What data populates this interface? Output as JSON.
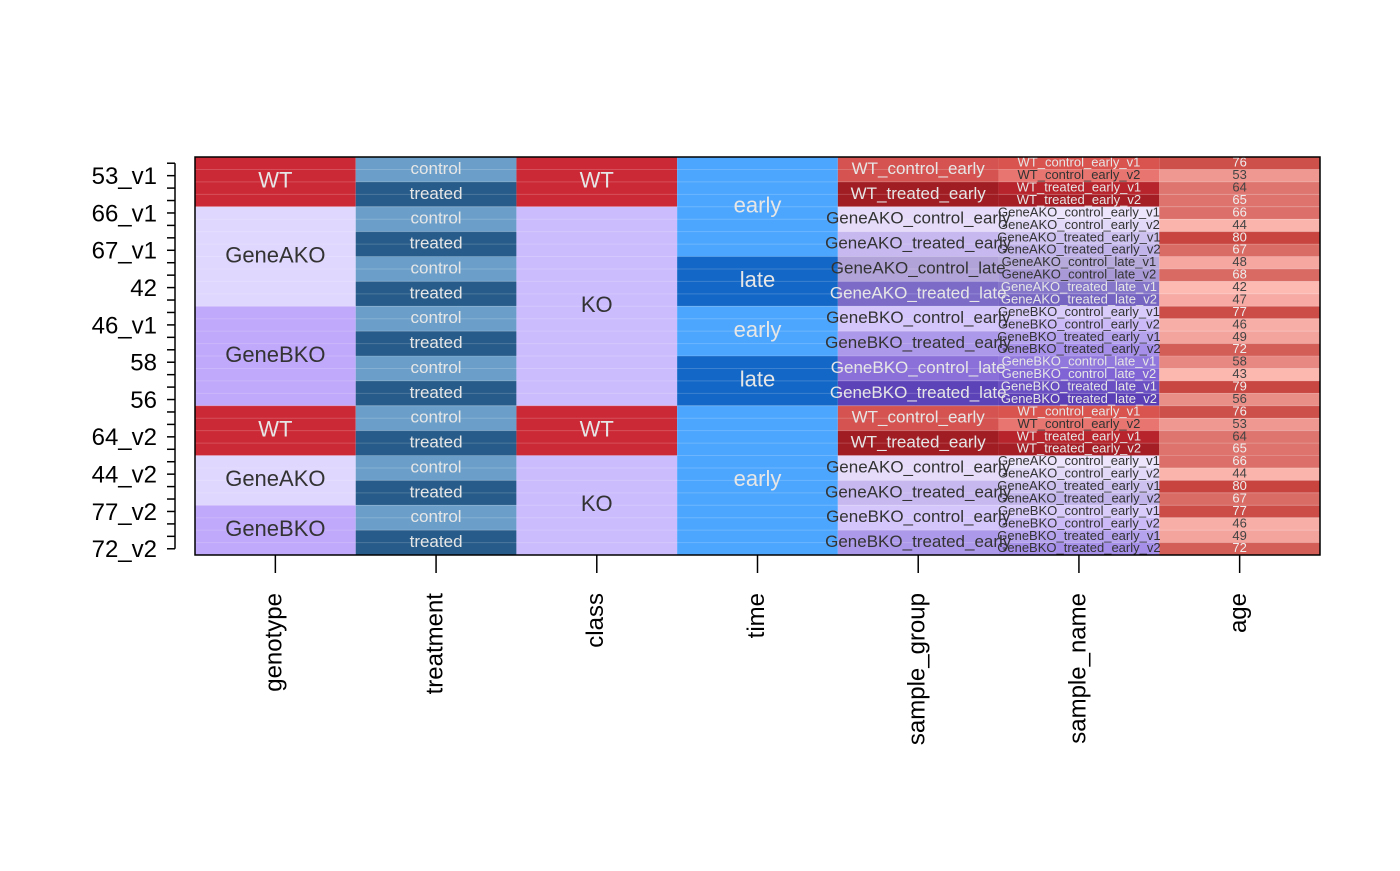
{
  "chart_data": {
    "type": "annotation-heatmap",
    "row_labels": [
      null,
      "53_v1",
      null,
      null,
      "66_v1",
      null,
      null,
      "67_v1",
      null,
      null,
      "42",
      null,
      null,
      "46_v1",
      null,
      null,
      "58",
      null,
      null,
      "56",
      null,
      null,
      "64_v2",
      null,
      null,
      "44_v2",
      null,
      null,
      "77_v2",
      null,
      null,
      "72_v2"
    ],
    "columns": [
      {
        "name": "genotype",
        "values": [
          "WT",
          "WT",
          "WT",
          "WT",
          "GeneAKO",
          "GeneAKO",
          "GeneAKO",
          "GeneAKO",
          "GeneAKO",
          "GeneAKO",
          "GeneAKO",
          "GeneAKO",
          "GeneBKO",
          "GeneBKO",
          "GeneBKO",
          "GeneBKO",
          "GeneBKO",
          "GeneBKO",
          "GeneBKO",
          "GeneBKO",
          "WT",
          "WT",
          "WT",
          "WT",
          "GeneAKO",
          "GeneAKO",
          "GeneAKO",
          "GeneAKO",
          "GeneBKO",
          "GeneBKO",
          "GeneBKO",
          "GeneBKO"
        ],
        "colors": [
          "#cc2936",
          "#cc2936",
          "#cc2936",
          "#cc2936",
          "#e0d7fe",
          "#e0d7fe",
          "#e0d7fe",
          "#e0d7fe",
          "#e0d7fe",
          "#e0d7fe",
          "#e0d7fe",
          "#e0d7fe",
          "#c0a8fb",
          "#c0a8fb",
          "#c0a8fb",
          "#c0a8fb",
          "#c0a8fb",
          "#c0a8fb",
          "#c0a8fb",
          "#c0a8fb",
          "#cc2936",
          "#cc2936",
          "#cc2936",
          "#cc2936",
          "#e0d7fe",
          "#e0d7fe",
          "#e0d7fe",
          "#e0d7fe",
          "#c0a8fb",
          "#c0a8fb",
          "#c0a8fb",
          "#c0a8fb"
        ]
      },
      {
        "name": "treatment",
        "values": [
          "control",
          "control",
          "treated",
          "treated",
          "control",
          "control",
          "treated",
          "treated",
          "control",
          "control",
          "treated",
          "treated",
          "control",
          "control",
          "treated",
          "treated",
          "control",
          "control",
          "treated",
          "treated",
          "control",
          "control",
          "treated",
          "treated",
          "control",
          "control",
          "treated",
          "treated",
          "control",
          "control",
          "treated",
          "treated"
        ],
        "colors": [
          "#6b9fca",
          "#6b9fca",
          "#275b89",
          "#275b89",
          "#6b9fca",
          "#6b9fca",
          "#275b89",
          "#275b89",
          "#6b9fca",
          "#6b9fca",
          "#275b89",
          "#275b89",
          "#6b9fca",
          "#6b9fca",
          "#275b89",
          "#275b89",
          "#6b9fca",
          "#6b9fca",
          "#275b89",
          "#275b89",
          "#6b9fca",
          "#6b9fca",
          "#275b89",
          "#275b89",
          "#6b9fca",
          "#6b9fca",
          "#275b89",
          "#275b89",
          "#6b9fca",
          "#6b9fca",
          "#275b89",
          "#275b89"
        ]
      },
      {
        "name": "class",
        "values": [
          "WT",
          "WT",
          "WT",
          "WT",
          "KO",
          "KO",
          "KO",
          "KO",
          "KO",
          "KO",
          "KO",
          "KO",
          "KO",
          "KO",
          "KO",
          "KO",
          "KO",
          "KO",
          "KO",
          "KO",
          "WT",
          "WT",
          "WT",
          "WT",
          "KO",
          "KO",
          "KO",
          "KO",
          "KO",
          "KO",
          "KO",
          "KO"
        ],
        "colors": [
          "#cc2936",
          "#cc2936",
          "#cc2936",
          "#cc2936",
          "#cbbcfd",
          "#cbbcfd",
          "#cbbcfd",
          "#cbbcfd",
          "#cbbcfd",
          "#cbbcfd",
          "#cbbcfd",
          "#cbbcfd",
          "#cbbcfd",
          "#cbbcfd",
          "#cbbcfd",
          "#cbbcfd",
          "#cbbcfd",
          "#cbbcfd",
          "#cbbcfd",
          "#cbbcfd",
          "#cc2936",
          "#cc2936",
          "#cc2936",
          "#cc2936",
          "#cbbcfd",
          "#cbbcfd",
          "#cbbcfd",
          "#cbbcfd",
          "#cbbcfd",
          "#cbbcfd",
          "#cbbcfd",
          "#cbbcfd"
        ]
      },
      {
        "name": "time",
        "values": [
          "early",
          "early",
          "early",
          "early",
          "early",
          "early",
          "early",
          "early",
          "late",
          "late",
          "late",
          "late",
          "early",
          "early",
          "early",
          "early",
          "late",
          "late",
          "late",
          "late",
          "early",
          "early",
          "early",
          "early",
          "early",
          "early",
          "early",
          "early",
          "early",
          "early",
          "early",
          "early"
        ],
        "colors": [
          "#4da6fe",
          "#4da6fe",
          "#4da6fe",
          "#4da6fe",
          "#4da6fe",
          "#4da6fe",
          "#4da6fe",
          "#4da6fe",
          "#1367c6",
          "#1367c6",
          "#1367c6",
          "#1367c6",
          "#4da6fe",
          "#4da6fe",
          "#4da6fe",
          "#4da6fe",
          "#1367c6",
          "#1367c6",
          "#1367c6",
          "#1367c6",
          "#4da6fe",
          "#4da6fe",
          "#4da6fe",
          "#4da6fe",
          "#4da6fe",
          "#4da6fe",
          "#4da6fe",
          "#4da6fe",
          "#4da6fe",
          "#4da6fe",
          "#4da6fe",
          "#4da6fe"
        ]
      },
      {
        "name": "sample_group",
        "values": [
          "WT_control_early",
          "WT_control_early",
          "WT_treated_early",
          "WT_treated_early",
          "GeneAKO_control_early",
          "GeneAKO_control_early",
          "GeneAKO_treated_early",
          "GeneAKO_treated_early",
          "GeneAKO_control_late",
          "GeneAKO_control_late",
          "GeneAKO_treated_late",
          "GeneAKO_treated_late",
          "GeneBKO_control_early",
          "GeneBKO_control_early",
          "GeneBKO_treated_early",
          "GeneBKO_treated_early",
          "GeneBKO_control_late",
          "GeneBKO_control_late",
          "GeneBKO_treated_late",
          "GeneBKO_treated_late",
          "WT_control_early",
          "WT_control_early",
          "WT_treated_early",
          "WT_treated_early",
          "GeneAKO_control_early",
          "GeneAKO_control_early",
          "GeneAKO_treated_early",
          "GeneAKO_treated_early",
          "GeneBKO_control_early",
          "GeneBKO_control_early",
          "GeneBKO_treated_early",
          "GeneBKO_treated_early"
        ],
        "colors": [
          "#d55451",
          "#d55451",
          "#a11d24",
          "#a11d24",
          "#e6dcfa",
          "#e6dcfa",
          "#c7b9f0",
          "#c7b9f0",
          "#b1a3d8",
          "#b1a3d8",
          "#7c6cc8",
          "#7c6cc8",
          "#d4c5fa",
          "#d4c5fa",
          "#ad99ea",
          "#ad99ea",
          "#8a70d8",
          "#8a70d8",
          "#5d43b8",
          "#5d43b8",
          "#d55451",
          "#d55451",
          "#a11d24",
          "#a11d24",
          "#e6dcfa",
          "#e6dcfa",
          "#c7b9f0",
          "#c7b9f0",
          "#d4c5fa",
          "#d4c5fa",
          "#ad99ea",
          "#ad99ea"
        ]
      },
      {
        "name": "sample_name",
        "values": [
          "WT_control_early_v1",
          "WT_control_early_v2",
          "WT_treated_early_v1",
          "WT_treated_early_v2",
          "GeneAKO_control_early_v1",
          "GeneAKO_control_early_v2",
          "GeneAKO_treated_early_v1",
          "GeneAKO_treated_early_v2",
          "GeneAKO_control_late_v1",
          "GeneAKO_control_late_v2",
          "GeneAKO_treated_late_v1",
          "GeneAKO_treated_late_v2",
          "GeneBKO_control_early_v1",
          "GeneBKO_control_early_v2",
          "GeneBKO_treated_early_v1",
          "GeneBKO_treated_early_v2",
          "GeneBKO_control_late_v1",
          "GeneBKO_control_late_v2",
          "GeneBKO_treated_late_v1",
          "GeneBKO_treated_late_v2",
          "WT_control_early_v1",
          "WT_control_early_v2",
          "WT_treated_early_v1",
          "WT_treated_early_v2",
          "GeneAKO_control_early_v1",
          "GeneAKO_control_early_v2",
          "GeneAKO_treated_early_v1",
          "GeneAKO_treated_early_v2",
          "GeneBKO_control_early_v1",
          "GeneBKO_control_early_v2",
          "GeneBKO_treated_early_v1",
          "GeneBKO_treated_early_v2"
        ],
        "colors": [
          "#d9534f",
          "#e8756f",
          "#b8242b",
          "#a51d25",
          "#ece5fb",
          "#e2d9f8",
          "#cdc2ef",
          "#c1b4ea",
          "#b7abdc",
          "#a999d6",
          "#8576c9",
          "#7664c2",
          "#d9ccfb",
          "#cbbaf7",
          "#b6a3ee",
          "#a58fe8",
          "#9178dc",
          "#8064d5",
          "#6a4fc2",
          "#5a3fb6",
          "#d9534f",
          "#e8756f",
          "#b8242b",
          "#a51d25",
          "#ece5fb",
          "#e2d9f8",
          "#cdc2ef",
          "#c1b4ea",
          "#d9ccfb",
          "#cbbaf7",
          "#b6a3ee",
          "#a58fe8"
        ]
      },
      {
        "name": "age",
        "values": [
          76,
          53,
          64,
          65,
          66,
          44,
          80,
          67,
          48,
          68,
          42,
          47,
          77,
          46,
          49,
          72,
          58,
          43,
          79,
          56,
          76,
          53,
          64,
          65,
          66,
          44,
          80,
          67,
          77,
          46,
          49,
          72
        ],
        "color_scale": [
          "#fdbab2",
          "#c8443f"
        ]
      }
    ]
  }
}
